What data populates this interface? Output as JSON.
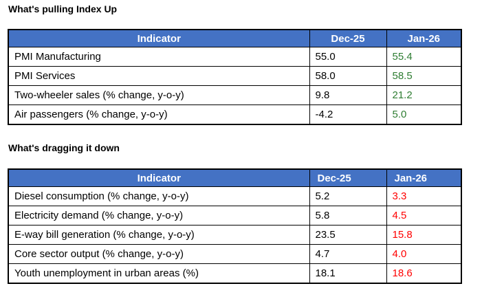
{
  "colors": {
    "header_bg": "#4472C4",
    "header_text": "#ffffff",
    "positive_value": "#2e7d32",
    "negative_value": "#ff0000",
    "body_text": "#000000",
    "border": "#000000"
  },
  "sections": [
    {
      "title": "What's pulling Index Up",
      "columns": [
        "Indicator",
        "Dec-25",
        "Jan-26"
      ],
      "jan_trend": "up",
      "rows": [
        {
          "indicator": "PMI Manufacturing",
          "dec": "55.0",
          "jan": "55.4"
        },
        {
          "indicator": "PMI Services",
          "dec": "58.0",
          "jan": "58.5"
        },
        {
          "indicator": "Two-wheeler sales (% change, y-o-y)",
          "dec": "9.8",
          "jan": "21.2"
        },
        {
          "indicator": "Air passengers (% change, y-o-y)",
          "dec": "-4.2",
          "jan": "5.0"
        }
      ]
    },
    {
      "title": "What's dragging it down",
      "columns": [
        "Indicator",
        "Dec-25",
        "Jan-26"
      ],
      "jan_trend": "down",
      "rows": [
        {
          "indicator": "Diesel consumption (% change, y-o-y)",
          "dec": "5.2",
          "jan": "3.3"
        },
        {
          "indicator": "Electricity demand (% change, y-o-y)",
          "dec": "5.8",
          "jan": "4.5"
        },
        {
          "indicator": "E-way bill generation (% change, y-o-y)",
          "dec": "23.5",
          "jan": "15.8"
        },
        {
          "indicator": "Core sector output (% change, y-o-y)",
          "dec": "4.7",
          "jan": "4.0"
        },
        {
          "indicator": "Youth unemployment in urban areas (%)",
          "dec": "18.1",
          "jan": "18.6"
        }
      ]
    }
  ]
}
